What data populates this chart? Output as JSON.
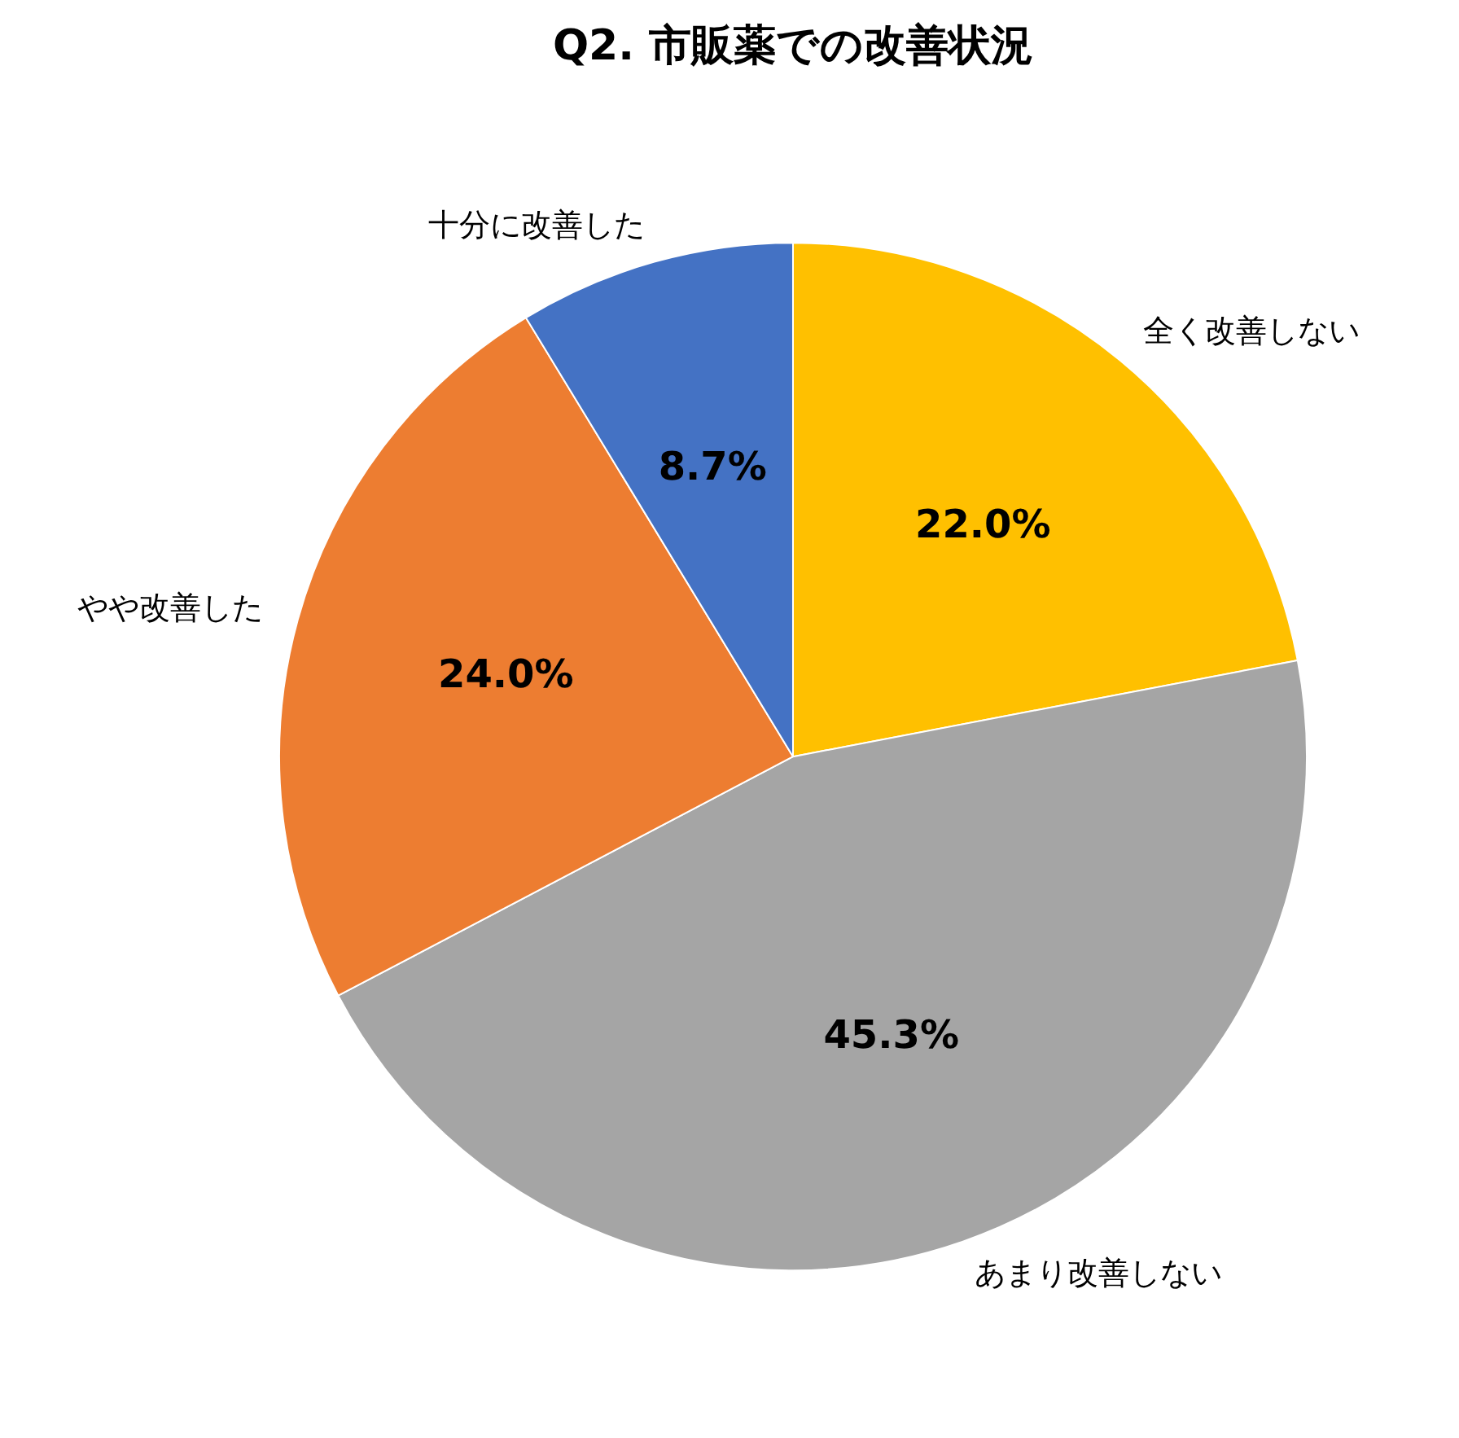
{
  "chart_data": {
    "type": "pie",
    "title": "Q2. 市販薬での改善状況",
    "categories": [
      "全く改善しない",
      "あまり改善しない",
      "やや改善した",
      "十分に改善した"
    ],
    "values": [
      22.0,
      45.3,
      24.0,
      8.7
    ],
    "value_labels": [
      "22.0%",
      "45.3%",
      "24.0%",
      "8.7%"
    ],
    "colors": [
      "#ffc000",
      "#a5a5a5",
      "#ed7d31",
      "#4472c4"
    ],
    "legend": false
  }
}
